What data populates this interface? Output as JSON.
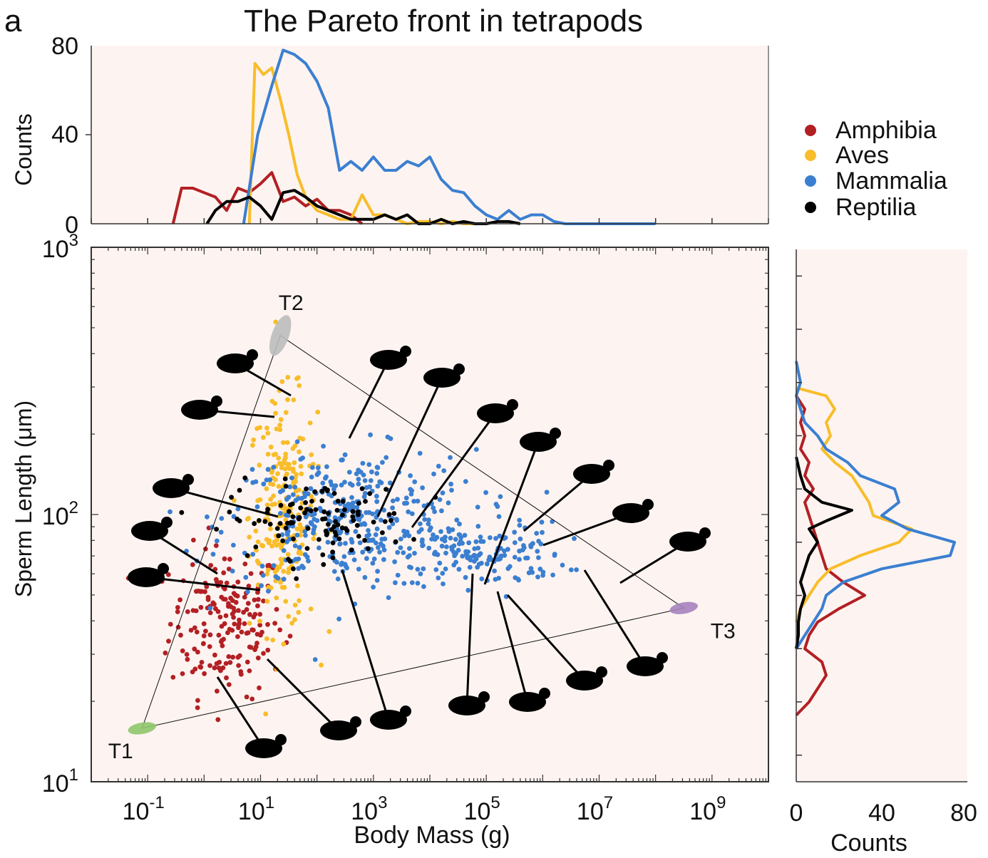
{
  "panel_label": "a",
  "colors": {
    "background": "#fdf4f1",
    "amphibia": "#b22024",
    "aves": "#f8bd2a",
    "mammalia": "#3b7fd1",
    "reptilia": "#000000",
    "t1": "#8fc66b",
    "t2": "#bdbdbd",
    "t3": "#a683bf"
  },
  "legend": {
    "items": [
      {
        "label": "Amphibia",
        "color_key": "amphibia"
      },
      {
        "label": "Aves",
        "color_key": "aves"
      },
      {
        "label": "Mammalia",
        "color_key": "mammalia"
      },
      {
        "label": "Reptilia",
        "color_key": "reptilia"
      }
    ]
  },
  "chart_data": [
    {
      "type": "line",
      "id": "top_histogram",
      "title": "The Pareto front in tetrapods",
      "xlabel": "",
      "ylabel": "Counts",
      "xscale": "log10",
      "xlim_log10": [
        -2,
        10
      ],
      "ylim": [
        0,
        80
      ],
      "yticks": [
        "0",
        "40",
        "80"
      ],
      "series": [
        {
          "name": "Amphibia",
          "color_key": "amphibia",
          "x_log10": [
            -0.55,
            -0.4,
            -0.2,
            0,
            0.2,
            0.4,
            0.6,
            0.8,
            1,
            1.2,
            1.4,
            1.6,
            1.8,
            2,
            2.2,
            2.4,
            2.6,
            2.8
          ],
          "values": [
            0,
            16,
            16,
            14,
            12,
            6,
            16,
            14,
            18,
            23,
            10,
            12,
            8,
            11,
            6,
            6,
            4,
            0
          ]
        },
        {
          "name": "Aves",
          "color_key": "aves",
          "x_log10": [
            0.8,
            0.9,
            1.05,
            1.2,
            1.35,
            1.5,
            1.65,
            1.8,
            2,
            2.2,
            2.4,
            2.6,
            2.8,
            3,
            3.2,
            3.4,
            3.6,
            3.8,
            4,
            4.2,
            4.4,
            4.6,
            4.8
          ],
          "values": [
            0,
            72,
            67,
            70,
            56,
            40,
            22,
            12,
            6,
            4,
            2,
            2,
            13,
            4,
            4,
            2,
            0,
            1,
            1,
            0,
            1,
            0,
            0
          ]
        },
        {
          "name": "Mammalia",
          "color_key": "mammalia",
          "x_log10": [
            0.7,
            0.95,
            1.2,
            1.4,
            1.6,
            1.8,
            2,
            2.2,
            2.4,
            2.6,
            2.8,
            3,
            3.2,
            3.4,
            3.6,
            3.8,
            4,
            4.2,
            4.4,
            4.6,
            4.8,
            5,
            5.2,
            5.4,
            5.6,
            5.8,
            6,
            6.2,
            6.4,
            6.6,
            6.8,
            7,
            7.2,
            7.4,
            7.6,
            7.8,
            8
          ],
          "values": [
            0,
            40,
            62,
            78,
            76,
            72,
            64,
            52,
            24,
            28,
            24,
            30,
            24,
            24,
            28,
            26,
            30,
            20,
            15,
            14,
            8,
            4,
            2,
            6,
            2,
            4,
            4,
            1,
            0,
            0,
            0,
            0,
            0,
            0,
            0,
            0,
            0
          ]
        },
        {
          "name": "Reptilia",
          "color_key": "reptilia",
          "x_log10": [
            0.05,
            0.2,
            0.4,
            0.6,
            0.8,
            1,
            1.2,
            1.4,
            1.6,
            1.8,
            2,
            2.2,
            2.4,
            2.6,
            2.8,
            3,
            3.2,
            3.4,
            3.6,
            3.8,
            4,
            4.2,
            4.4,
            4.6,
            4.8,
            5,
            5.2,
            5.4,
            5.6
          ],
          "values": [
            0,
            6,
            10,
            10,
            12,
            8,
            2,
            14,
            15,
            12,
            8,
            6,
            4,
            2,
            2,
            2,
            4,
            2,
            4,
            0,
            0,
            2,
            0,
            1,
            0,
            0,
            1,
            1,
            0
          ]
        }
      ]
    },
    {
      "type": "scatter",
      "id": "main_scatter",
      "title": "",
      "xlabel": "Body Mass (g)",
      "ylabel": "Sperm Length (μm)",
      "xscale": "log10",
      "yscale": "log10",
      "xlim_log10": [
        -2,
        10
      ],
      "ylim_log10": [
        1,
        3
      ],
      "xtick_labels": [
        {
          "base": "10",
          "exp": "-1"
        },
        {
          "base": "10",
          "exp": "1"
        },
        {
          "base": "10",
          "exp": "3"
        },
        {
          "base": "10",
          "exp": "5"
        },
        {
          "base": "10",
          "exp": "7"
        },
        {
          "base": "10",
          "exp": "9"
        }
      ],
      "ytick_labels": [
        {
          "base": "10",
          "exp": "1"
        },
        {
          "base": "10",
          "exp": "2"
        },
        {
          "base": "10",
          "exp": "3"
        }
      ],
      "archetypes": [
        {
          "label": "T1",
          "x_log10": -1.1,
          "y_log10": 1.2,
          "color_key": "t1"
        },
        {
          "label": "T2",
          "x_log10": 1.35,
          "y_log10": 2.67,
          "color_key": "t2"
        },
        {
          "label": "T3",
          "x_log10": 8.5,
          "y_log10": 1.65,
          "color_key": "t3"
        }
      ],
      "clusters": [
        {
          "name": "Amphibia",
          "color_key": "amphibia",
          "count": 190,
          "cx_log10": 0.4,
          "cy_log10": 1.6,
          "sx": 0.5,
          "sy": 0.14
        },
        {
          "name": "Aves",
          "color_key": "aves",
          "count": 220,
          "cx_log10": 1.4,
          "cy_log10": 2.0,
          "sx": 0.3,
          "sy": 0.22
        },
        {
          "name": "Mammalia",
          "color_key": "mammalia",
          "count": 380,
          "cx_log10": 2.6,
          "cy_log10": 1.98,
          "sx": 1.1,
          "sy": 0.13
        },
        {
          "name": "Mammalia",
          "color_key": "mammalia",
          "count": 140,
          "cx_log10": 5.0,
          "cy_log10": 1.85,
          "sx": 0.7,
          "sy": 0.06
        },
        {
          "name": "Reptilia",
          "color_key": "reptilia",
          "count": 110,
          "cx_log10": 2.0,
          "cy_log10": 1.98,
          "sx": 0.8,
          "sy": 0.07
        }
      ]
    },
    {
      "type": "line",
      "id": "right_histogram",
      "title": "",
      "xlabel": "Counts",
      "xlim": [
        0,
        80
      ],
      "xticks": [
        "0",
        "40",
        "80"
      ],
      "yscale": "log10",
      "ylim_log10": [
        1,
        3
      ],
      "series": [
        {
          "name": "Amphibia",
          "color_key": "amphibia",
          "y_log10": [
            2.45,
            2.4,
            2.35,
            2.3,
            2.25,
            2.2,
            2.15,
            2.1,
            2.05,
            2,
            1.95,
            1.9,
            1.85,
            1.8,
            1.75,
            1.7,
            1.65,
            1.6,
            1.55,
            1.5,
            1.45,
            1.4,
            1.35,
            1.3,
            1.25
          ],
          "values": [
            0,
            4,
            2,
            4,
            2,
            6,
            4,
            8,
            4,
            6,
            8,
            10,
            12,
            14,
            22,
            32,
            20,
            10,
            6,
            4,
            12,
            14,
            10,
            6,
            0
          ]
        },
        {
          "name": "Aves",
          "color_key": "aves",
          "y_log10": [
            2.48,
            2.45,
            2.4,
            2.35,
            2.3,
            2.25,
            2.2,
            2.15,
            2.1,
            2.05,
            2,
            1.95,
            1.9,
            1.85,
            1.8,
            1.75,
            1.7,
            1.65,
            1.6
          ],
          "values": [
            0,
            14,
            18,
            14,
            16,
            12,
            18,
            26,
            30,
            34,
            36,
            54,
            48,
            30,
            16,
            10,
            6,
            2,
            0
          ]
        },
        {
          "name": "Mammalia",
          "color_key": "mammalia",
          "y_log10": [
            2.58,
            2.5,
            2.45,
            2.4,
            2.35,
            2.3,
            2.25,
            2.2,
            2.15,
            2.1,
            2.05,
            2,
            1.95,
            1.9,
            1.85,
            1.8,
            1.75,
            1.7,
            1.65,
            1.6,
            1.55,
            1.5
          ],
          "values": [
            0,
            2,
            0,
            2,
            4,
            10,
            14,
            24,
            30,
            46,
            48,
            40,
            52,
            74,
            72,
            40,
            22,
            14,
            12,
            8,
            4,
            0
          ]
        },
        {
          "name": "Reptilia",
          "color_key": "reptilia",
          "y_log10": [
            2.22,
            2.15,
            2.1,
            2.05,
            2.02,
            1.98,
            1.95,
            1.9,
            1.85,
            1.8,
            1.75,
            1.7,
            1.65,
            1.6,
            1.55,
            1.5
          ],
          "values": [
            0,
            2,
            4,
            12,
            26,
            14,
            6,
            10,
            6,
            4,
            2,
            4,
            2,
            1,
            1,
            0
          ]
        }
      ]
    }
  ]
}
